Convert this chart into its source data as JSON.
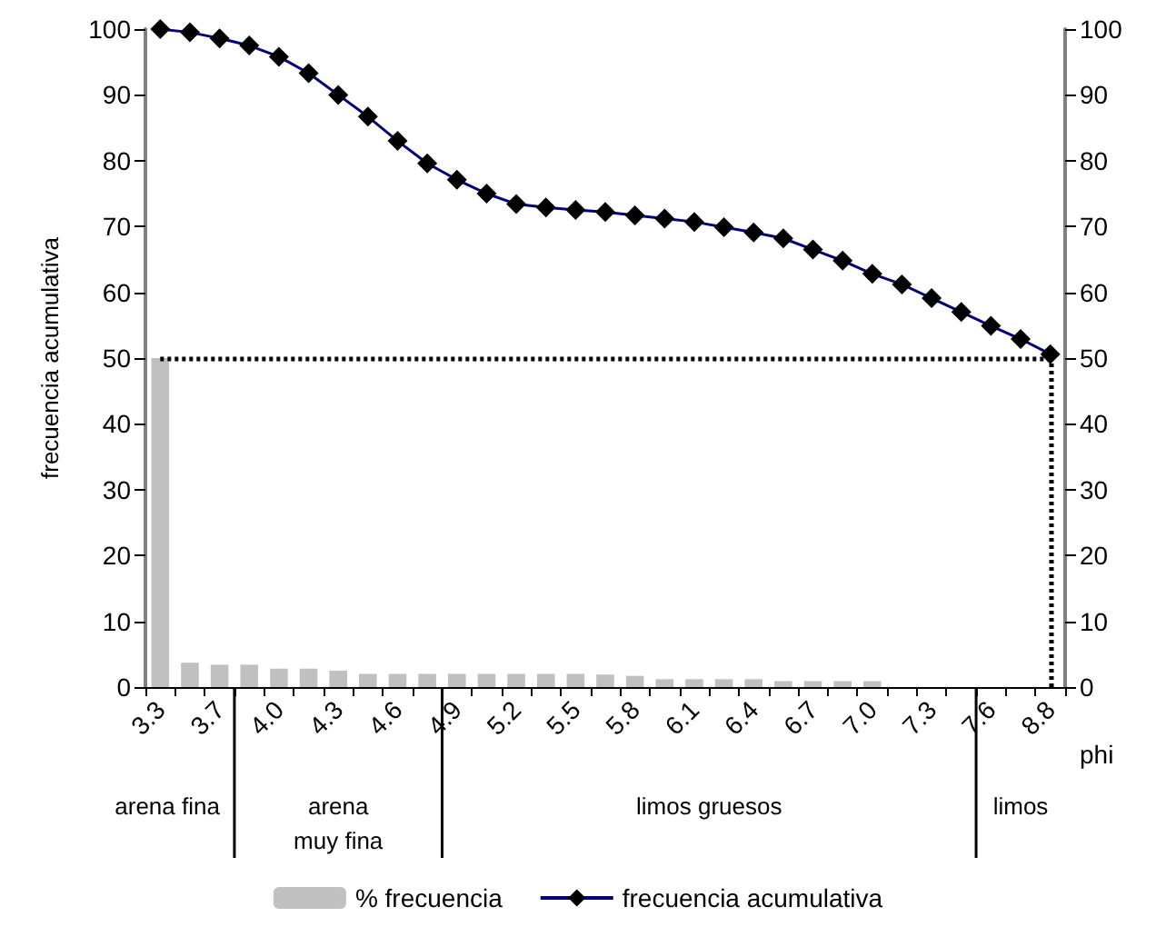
{
  "chart_data": {
    "type": "bar",
    "xlabel": "phi",
    "ylabel": "frecuencia acumulativa",
    "categories": [
      "3.3",
      null,
      "3.7",
      null,
      "4.0",
      null,
      "4.3",
      null,
      "4.6",
      null,
      "4.9",
      null,
      "5.2",
      null,
      "5.5",
      null,
      "5.8",
      null,
      "6.1",
      null,
      "6.4",
      null,
      "6.7",
      null,
      "7.0",
      null,
      "7.3",
      null,
      "7.6",
      null,
      "8.8"
    ],
    "series": [
      {
        "name": "% frecuencia",
        "color": "#c0c0c0",
        "values": [
          50,
          3.7,
          3.4,
          3.4,
          2.8,
          2.8,
          2.5,
          2,
          2,
          2,
          2,
          2,
          2,
          2,
          2,
          1.9,
          1.7,
          1.2,
          1.2,
          1.2,
          1.2,
          0.9,
          0.9,
          0.9,
          0.9,
          0,
          0,
          0,
          0,
          0,
          0
        ]
      },
      {
        "name": "frecuencia acumulativa",
        "type": "line",
        "color": "#000080",
        "marker": "diamond",
        "values": [
          100,
          99.5,
          98.6,
          97.5,
          95.8,
          93.3,
          90,
          86.7,
          83,
          79.6,
          77.1,
          75,
          73.4,
          72.9,
          72.5,
          72.2,
          71.7,
          71.2,
          70.7,
          69.9,
          69.1,
          68.2,
          66.5,
          64.8,
          62.8,
          61.2,
          59.1,
          57,
          54.9,
          52.9,
          50.6
        ]
      }
    ],
    "ylim": [
      0,
      100
    ],
    "yticks": [
      0,
      10,
      20,
      30,
      40,
      50,
      60,
      70,
      80,
      90,
      100
    ],
    "y2lim": [
      0,
      100
    ],
    "y2ticks": [
      0,
      10,
      20,
      30,
      40,
      50,
      60,
      70,
      80,
      90,
      100
    ],
    "ref_lines": [
      {
        "axis": "y",
        "value": 50,
        "color": "#000000",
        "line_style": "dotted"
      },
      {
        "axis": "x",
        "value": "8.8",
        "color": "#000000",
        "line_style": "dotted"
      }
    ],
    "annotations": [
      "arena fina",
      "arena\nmuy fina",
      "limos gruesos",
      "limos"
    ],
    "grid": false,
    "legend": "bottom"
  }
}
